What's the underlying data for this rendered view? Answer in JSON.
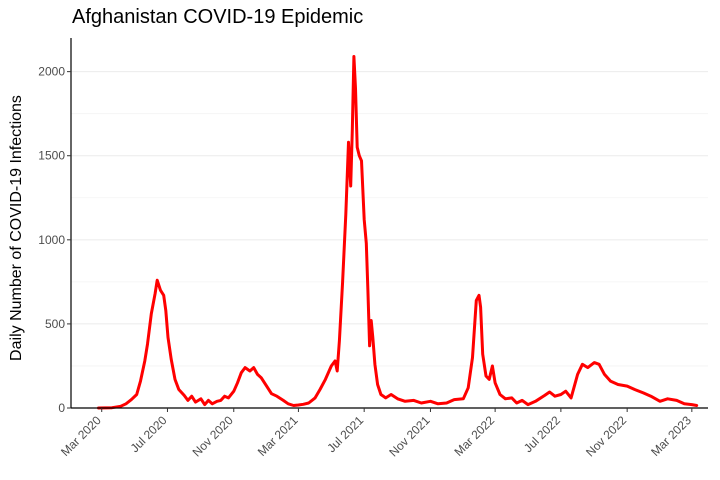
{
  "chart_data": {
    "type": "line",
    "title": "Afghanistan COVID-19 Epidemic",
    "xlabel": "",
    "ylabel": "Daily Number of COVID-19 Infections",
    "grid": "horizontal",
    "xlim": [
      "2020-01-04",
      "2023-03-31"
    ],
    "ylim": [
      0,
      2200
    ],
    "yticks": [
      0,
      500,
      1000,
      1500,
      2000
    ],
    "xticks": [
      {
        "date": "2020-03-01",
        "label": "Mar 2020"
      },
      {
        "date": "2020-07-01",
        "label": "Jul 2020"
      },
      {
        "date": "2020-11-01",
        "label": "Nov 2020"
      },
      {
        "date": "2021-03-01",
        "label": "Mar 2021"
      },
      {
        "date": "2021-07-01",
        "label": "Jul 2021"
      },
      {
        "date": "2021-11-01",
        "label": "Nov 2021"
      },
      {
        "date": "2022-03-01",
        "label": "Mar 2022"
      },
      {
        "date": "2022-07-01",
        "label": "Jul 2022"
      },
      {
        "date": "2022-11-01",
        "label": "Nov 2022"
      },
      {
        "date": "2023-03-01",
        "label": "Mar 2023"
      }
    ],
    "series": [
      {
        "color": "#ff0000",
        "points": [
          [
            "2020-02-24",
            0
          ],
          [
            "2020-03-20",
            2
          ],
          [
            "2020-04-05",
            10
          ],
          [
            "2020-04-15",
            25
          ],
          [
            "2020-04-25",
            50
          ],
          [
            "2020-05-05",
            80
          ],
          [
            "2020-05-12",
            160
          ],
          [
            "2020-05-20",
            280
          ],
          [
            "2020-05-25",
            380
          ],
          [
            "2020-06-01",
            560
          ],
          [
            "2020-06-08",
            680
          ],
          [
            "2020-06-12",
            760
          ],
          [
            "2020-06-18",
            700
          ],
          [
            "2020-06-24",
            670
          ],
          [
            "2020-06-28",
            580
          ],
          [
            "2020-07-02",
            420
          ],
          [
            "2020-07-08",
            290
          ],
          [
            "2020-07-15",
            170
          ],
          [
            "2020-07-22",
            110
          ],
          [
            "2020-08-01",
            75
          ],
          [
            "2020-08-08",
            45
          ],
          [
            "2020-08-15",
            70
          ],
          [
            "2020-08-22",
            35
          ],
          [
            "2020-09-01",
            55
          ],
          [
            "2020-09-08",
            20
          ],
          [
            "2020-09-15",
            45
          ],
          [
            "2020-09-22",
            25
          ],
          [
            "2020-10-01",
            40
          ],
          [
            "2020-10-08",
            45
          ],
          [
            "2020-10-15",
            70
          ],
          [
            "2020-10-22",
            60
          ],
          [
            "2020-11-01",
            100
          ],
          [
            "2020-11-08",
            150
          ],
          [
            "2020-11-15",
            210
          ],
          [
            "2020-11-22",
            240
          ],
          [
            "2020-12-01",
            220
          ],
          [
            "2020-12-08",
            240
          ],
          [
            "2020-12-15",
            200
          ],
          [
            "2020-12-22",
            180
          ],
          [
            "2021-01-01",
            130
          ],
          [
            "2021-01-10",
            85
          ],
          [
            "2021-01-20",
            70
          ],
          [
            "2021-02-01",
            45
          ],
          [
            "2021-02-10",
            25
          ],
          [
            "2021-02-20",
            15
          ],
          [
            "2021-03-01",
            18
          ],
          [
            "2021-03-10",
            22
          ],
          [
            "2021-03-20",
            30
          ],
          [
            "2021-04-01",
            60
          ],
          [
            "2021-04-10",
            110
          ],
          [
            "2021-04-20",
            170
          ],
          [
            "2021-05-01",
            250
          ],
          [
            "2021-05-08",
            280
          ],
          [
            "2021-05-12",
            220
          ],
          [
            "2021-05-16",
            400
          ],
          [
            "2021-05-22",
            750
          ],
          [
            "2021-05-28",
            1150
          ],
          [
            "2021-06-02",
            1580
          ],
          [
            "2021-06-06",
            1320
          ],
          [
            "2021-06-09",
            1650
          ],
          [
            "2021-06-12",
            2090
          ],
          [
            "2021-06-15",
            1900
          ],
          [
            "2021-06-18",
            1550
          ],
          [
            "2021-06-22",
            1500
          ],
          [
            "2021-06-26",
            1470
          ],
          [
            "2021-07-01",
            1120
          ],
          [
            "2021-07-05",
            980
          ],
          [
            "2021-07-08",
            700
          ],
          [
            "2021-07-11",
            370
          ],
          [
            "2021-07-14",
            520
          ],
          [
            "2021-07-17",
            420
          ],
          [
            "2021-07-21",
            260
          ],
          [
            "2021-07-26",
            140
          ],
          [
            "2021-08-01",
            80
          ],
          [
            "2021-08-10",
            60
          ],
          [
            "2021-08-20",
            80
          ],
          [
            "2021-09-01",
            55
          ],
          [
            "2021-09-15",
            40
          ],
          [
            "2021-10-01",
            45
          ],
          [
            "2021-10-15",
            30
          ],
          [
            "2021-11-01",
            40
          ],
          [
            "2021-11-15",
            25
          ],
          [
            "2021-12-01",
            30
          ],
          [
            "2021-12-15",
            50
          ],
          [
            "2022-01-01",
            55
          ],
          [
            "2022-01-10",
            120
          ],
          [
            "2022-01-18",
            300
          ],
          [
            "2022-01-25",
            640
          ],
          [
            "2022-01-30",
            670
          ],
          [
            "2022-02-02",
            600
          ],
          [
            "2022-02-06",
            320
          ],
          [
            "2022-02-12",
            190
          ],
          [
            "2022-02-18",
            170
          ],
          [
            "2022-02-24",
            250
          ],
          [
            "2022-03-01",
            150
          ],
          [
            "2022-03-10",
            80
          ],
          [
            "2022-03-20",
            55
          ],
          [
            "2022-04-01",
            60
          ],
          [
            "2022-04-10",
            30
          ],
          [
            "2022-04-20",
            45
          ],
          [
            "2022-05-01",
            20
          ],
          [
            "2022-05-15",
            40
          ],
          [
            "2022-06-01",
            75
          ],
          [
            "2022-06-10",
            95
          ],
          [
            "2022-06-20",
            70
          ],
          [
            "2022-07-01",
            80
          ],
          [
            "2022-07-10",
            100
          ],
          [
            "2022-07-20",
            60
          ],
          [
            "2022-08-01",
            200
          ],
          [
            "2022-08-10",
            260
          ],
          [
            "2022-08-20",
            240
          ],
          [
            "2022-09-01",
            270
          ],
          [
            "2022-09-10",
            260
          ],
          [
            "2022-09-20",
            200
          ],
          [
            "2022-10-01",
            160
          ],
          [
            "2022-10-15",
            140
          ],
          [
            "2022-11-01",
            130
          ],
          [
            "2022-11-15",
            110
          ],
          [
            "2022-12-01",
            90
          ],
          [
            "2022-12-15",
            70
          ],
          [
            "2023-01-01",
            40
          ],
          [
            "2023-01-15",
            55
          ],
          [
            "2023-02-01",
            45
          ],
          [
            "2023-02-15",
            25
          ],
          [
            "2023-03-01",
            20
          ],
          [
            "2023-03-10",
            15
          ]
        ]
      }
    ]
  }
}
